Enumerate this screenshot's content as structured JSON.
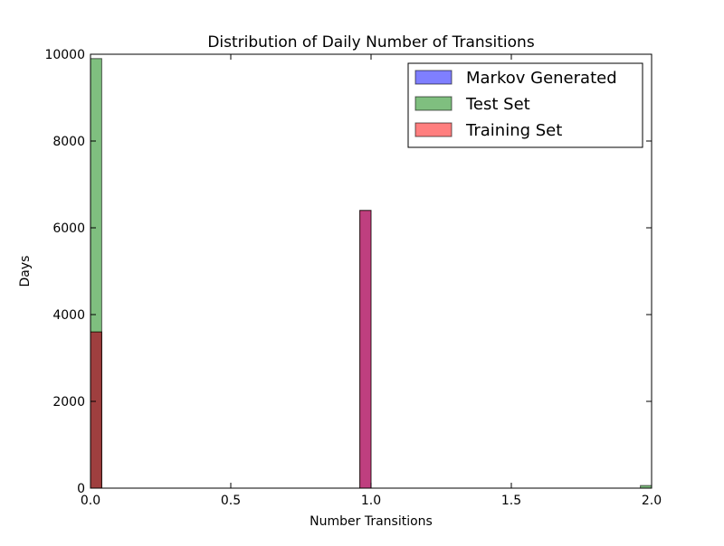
{
  "chart_data": {
    "type": "bar",
    "title": "Distribution of Daily Number of Transitions",
    "xlabel": "Number Transitions",
    "ylabel": "Days",
    "xlim": [
      0,
      2.0
    ],
    "ylim": [
      0,
      10000
    ],
    "xticks": [
      0.0,
      0.5,
      1.0,
      1.5,
      2.0
    ],
    "xtick_labels": [
      "0.0",
      "0.5",
      "1.0",
      "1.5",
      "2.0"
    ],
    "yticks": [
      0,
      2000,
      4000,
      6000,
      8000,
      10000
    ],
    "ytick_labels": [
      "0",
      "2000",
      "4000",
      "6000",
      "8000",
      "10000"
    ],
    "bin_width": 0.04,
    "grid": false,
    "legend_position": "top-right",
    "series": [
      {
        "name": "Markov Generated",
        "color": "#0000ff",
        "alpha": 0.5,
        "bins": [
          {
            "x": 0.0,
            "count": 3600
          },
          {
            "x": 0.96,
            "count": 6400
          },
          {
            "x": 1.96,
            "count": 0
          }
        ]
      },
      {
        "name": "Test Set",
        "color": "#008000",
        "alpha": 0.5,
        "bins": [
          {
            "x": 0.0,
            "count": 9900
          },
          {
            "x": 0.96,
            "count": 0
          },
          {
            "x": 1.96,
            "count": 60
          }
        ]
      },
      {
        "name": "Training Set",
        "color": "#ff0000",
        "alpha": 0.5,
        "bins": [
          {
            "x": 0.0,
            "count": 3600
          },
          {
            "x": 0.96,
            "count": 6400
          },
          {
            "x": 1.96,
            "count": 0
          }
        ]
      }
    ]
  }
}
